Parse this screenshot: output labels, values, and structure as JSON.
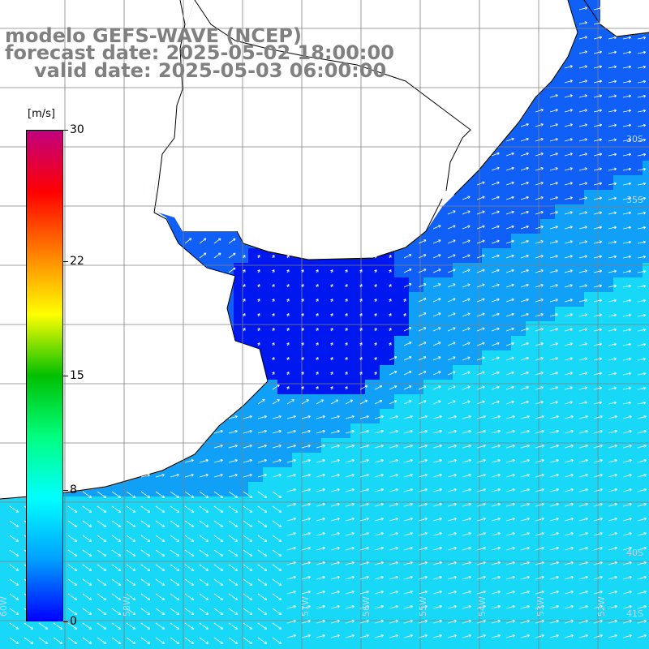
{
  "title": {
    "line1": "modelo GEFS-WAVE (NCEP)",
    "line2": "forecast date: 2025-05-02 18:00:00",
    "line3": "valid date: 2025-05-03 06:00:00"
  },
  "colorbar": {
    "unit": "[m/s]",
    "ticks": [
      {
        "label": "30",
        "value": 30
      },
      {
        "label": "22",
        "value": 22
      },
      {
        "label": "15",
        "value": 15
      },
      {
        "label": "8",
        "value": 8
      },
      {
        "label": "0",
        "value": 0
      }
    ],
    "stops": [
      "#0000ff",
      "#00a0ff",
      "#00ffff",
      "#00ff80",
      "#00c000",
      "#ffff00",
      "#ff8000",
      "#ff0000",
      "#c00080"
    ]
  },
  "map": {
    "ocean_colors": {
      "calm": "#0018f0",
      "light": "#1060f8",
      "moderate": "#10a0f8",
      "strong": "#18d8f8"
    },
    "land_color": "#ffffff",
    "coast_color": "#000000",
    "grid_color": "#808080",
    "lat_labels": [
      "30S",
      "35S",
      "40S",
      "41S"
    ],
    "lon_labels": [
      "60W",
      "58W",
      "57W",
      "56W",
      "55W",
      "54W",
      "53W",
      "52W"
    ]
  }
}
